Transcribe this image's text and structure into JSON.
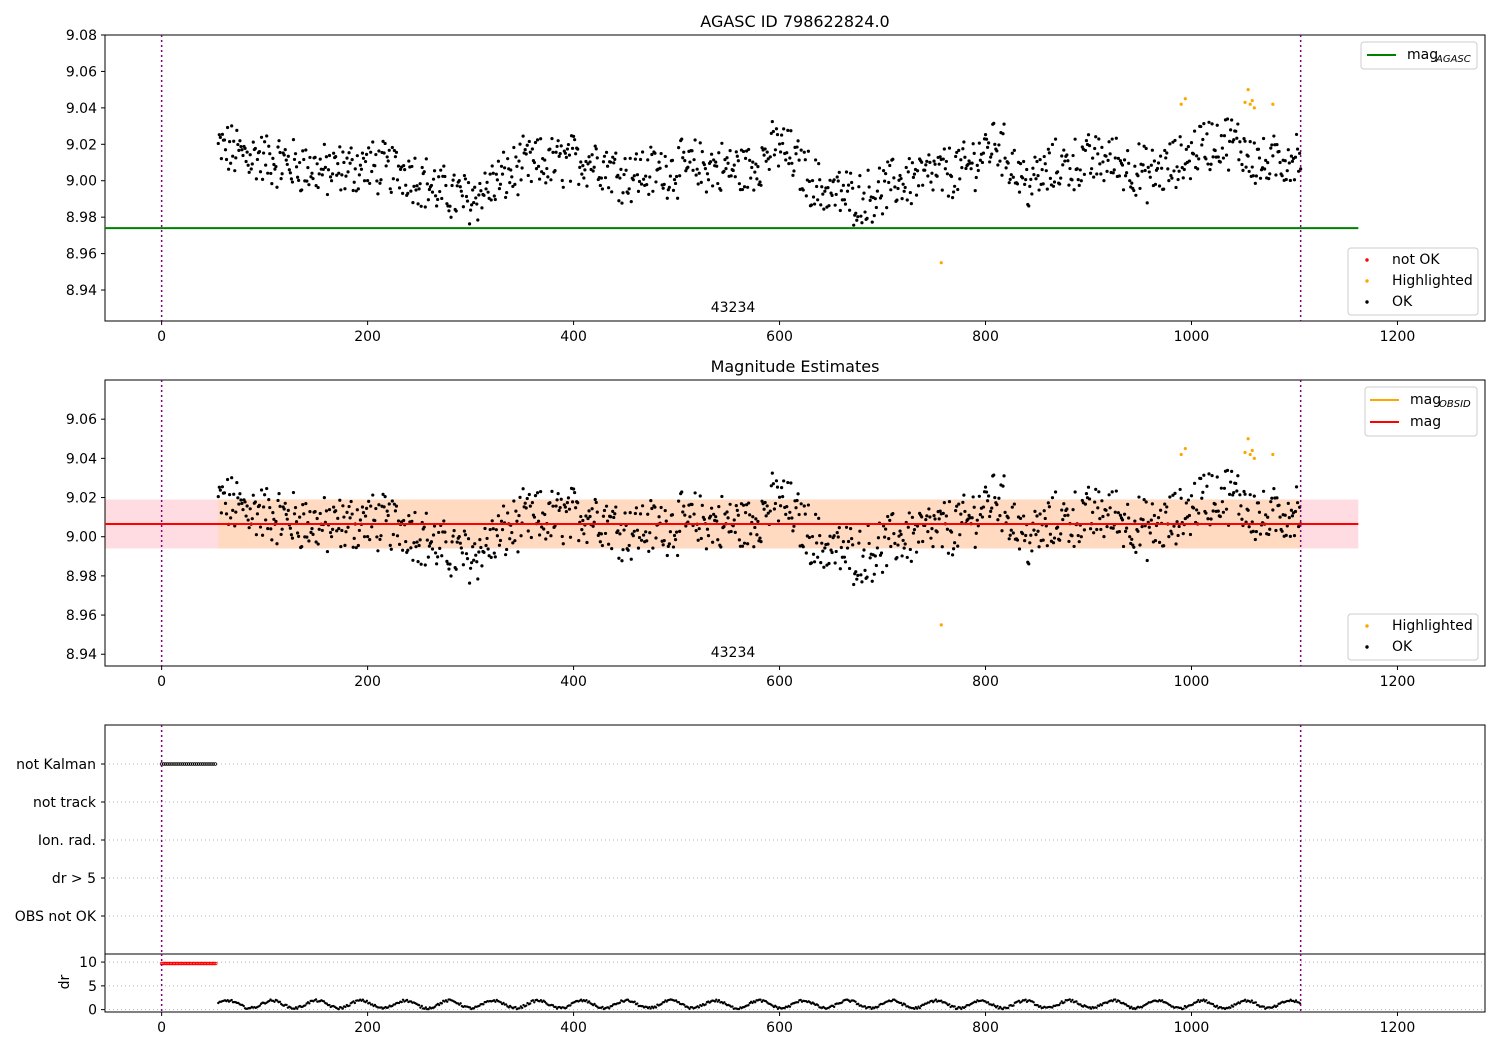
{
  "figure": {
    "colors": {
      "ok": "#000000",
      "highlighted": "#ffa500",
      "not_ok": "#ff0000",
      "agasc_line": "#008000",
      "mag_line": "#ff0000",
      "mag_obsid_line": "#ffa500",
      "band_mag": "#ffc0cb",
      "band_obsid": "#ffdab9",
      "vline": "#800080",
      "grid": "#b0b0b0"
    }
  },
  "chart_data": [
    {
      "id": "top",
      "type": "scatter",
      "title": "AGASC ID 798622824.0",
      "xlim": [
        -55,
        1285
      ],
      "ylim": [
        8.923,
        9.08
      ],
      "xticks": [
        "0",
        "200",
        "400",
        "600",
        "800",
        "1000",
        "1200"
      ],
      "yticks": [
        "8.94",
        "8.96",
        "8.98",
        "9.00",
        "9.02",
        "9.04",
        "9.06",
        "9.08"
      ],
      "vlines": [
        0,
        1106
      ],
      "hline": {
        "y": 8.974,
        "x0": -55,
        "x1": 1162,
        "color_key": "agasc_line"
      },
      "annotation": {
        "text": "43234",
        "x": 553,
        "y": 8.928
      },
      "legend_upper": [
        {
          "label": "mag",
          "sub": "AGASC",
          "kind": "line",
          "color_key": "agasc_line"
        }
      ],
      "legend_lower": [
        {
          "label": "not OK",
          "kind": "marker",
          "color_key": "not_ok"
        },
        {
          "label": "Highlighted",
          "kind": "marker",
          "color_key": "highlighted"
        },
        {
          "label": "OK",
          "kind": "marker",
          "color_key": "ok"
        }
      ],
      "highlighted_points": [
        [
          990,
          9.042
        ],
        [
          994,
          9.045
        ],
        [
          1052,
          9.043
        ],
        [
          1055,
          9.05
        ],
        [
          1057,
          9.042
        ],
        [
          1059,
          9.044
        ],
        [
          1061,
          9.04
        ],
        [
          1079,
          9.042
        ],
        [
          757,
          8.955
        ]
      ]
    },
    {
      "id": "middle",
      "type": "scatter",
      "title": "Magnitude Estimates",
      "xlim": [
        -55,
        1285
      ],
      "ylim": [
        8.934,
        9.08
      ],
      "xticks": [
        "0",
        "200",
        "400",
        "600",
        "800",
        "1000",
        "1200"
      ],
      "yticks": [
        "8.94",
        "8.96",
        "8.98",
        "9.00",
        "9.02",
        "9.04",
        "9.06"
      ],
      "vlines": [
        0,
        1106
      ],
      "mag_line": 9.0065,
      "mag_band": [
        8.994,
        9.019
      ],
      "obsid_band": [
        8.994,
        9.019
      ],
      "band_x": [
        -55,
        1162
      ],
      "obsid_band_x": [
        55,
        1106
      ],
      "annotation": {
        "text": "43234",
        "x": 553,
        "y": 8.939
      },
      "legend_upper": [
        {
          "label": "mag",
          "sub": "OBSID",
          "kind": "line",
          "color_key": "mag_obsid_line"
        },
        {
          "label": "mag",
          "sub": "",
          "kind": "line",
          "color_key": "mag_line"
        }
      ],
      "legend_lower": [
        {
          "label": "Highlighted",
          "kind": "marker",
          "color_key": "highlighted"
        },
        {
          "label": "OK",
          "kind": "marker",
          "color_key": "ok"
        }
      ],
      "highlighted_points": [
        [
          990,
          9.042
        ],
        [
          994,
          9.045
        ],
        [
          1052,
          9.043
        ],
        [
          1055,
          9.05
        ],
        [
          1057,
          9.042
        ],
        [
          1059,
          9.044
        ],
        [
          1061,
          9.04
        ],
        [
          1079,
          9.042
        ],
        [
          757,
          8.955
        ]
      ]
    },
    {
      "id": "flags",
      "type": "scatter",
      "categories": [
        "not Kalman",
        "not track",
        "Ion. rad.",
        "dr > 5",
        "OBS not OK"
      ],
      "xlim": [
        -55,
        1285
      ],
      "vlines": [
        0,
        1106
      ],
      "not_kalman_range": [
        0,
        53
      ]
    },
    {
      "id": "dr",
      "type": "scatter",
      "ylabel": "dr",
      "ylim": [
        -0.5,
        11.7
      ],
      "yticks": [
        "0",
        "5",
        "10"
      ],
      "xlim": [
        -55,
        1285
      ],
      "xticks": [
        "0",
        "200",
        "400",
        "600",
        "800",
        "1000",
        "1200"
      ],
      "vlines": [
        0,
        1106
      ],
      "flagged_range": [
        0,
        53
      ],
      "flagged_value": 9.7
    }
  ]
}
